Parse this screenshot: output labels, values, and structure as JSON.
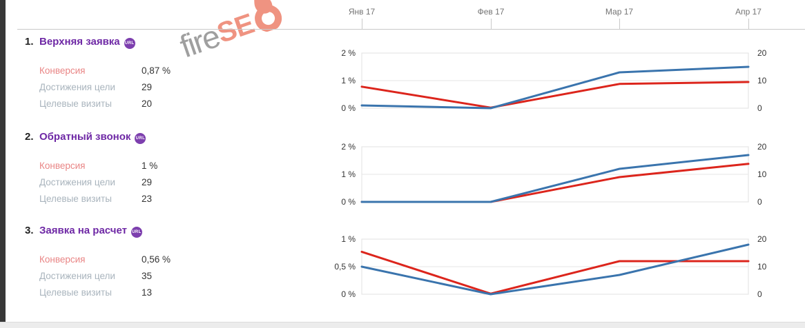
{
  "header": {
    "months": [
      "Янв 17",
      "Фев 17",
      "Мар 17",
      "Апр 17"
    ]
  },
  "logo": {
    "text_gray": "fire",
    "text_accent": "SE",
    "accent_color": "#ef8e7b",
    "gray_color": "#9a9a9a"
  },
  "labels": {
    "conversion": "Конверсия",
    "goal_reaches": "Достижения цели",
    "goal_visits": "Целевые визиты"
  },
  "goals": [
    {
      "index": "1.",
      "title": "Верхняя заявка",
      "badge": "URL",
      "conversion": "0,87 %",
      "reaches": "29",
      "visits": "20"
    },
    {
      "index": "2.",
      "title": "Обратный звонок",
      "badge": "URL",
      "conversion": "1 %",
      "reaches": "29",
      "visits": "23"
    },
    {
      "index": "3.",
      "title": "Заявка на расчет",
      "badge": "URL",
      "conversion": "0,56 %",
      "reaches": "35",
      "visits": "13"
    }
  ],
  "colors": {
    "conversion_line": "#dc251c",
    "reaches_line": "#3a74ad",
    "goal_title": "#6e28a5",
    "badge": "#7d3fae",
    "conversion_label": "#e98585",
    "muted_label": "#a9b4bd"
  },
  "chart_data": [
    {
      "type": "line",
      "title": "Верхняя заявка — динамика по месяцам",
      "x": [
        "Янв 17",
        "Фев 17",
        "Мар 17",
        "Апр 17"
      ],
      "series": [
        {
          "name": "Конверсия, %",
          "key": "conversion-line",
          "axis": "left",
          "color": "#dc251c",
          "values": [
            0.78,
            0.02,
            0.88,
            0.95
          ]
        },
        {
          "name": "Достижения цели",
          "key": "reaches-line",
          "axis": "right",
          "color": "#3a74ad",
          "values": [
            1,
            0,
            13,
            15
          ]
        }
      ],
      "left_axis": {
        "ticks": [
          "0 %",
          "1 %",
          "2 %"
        ],
        "max": 2
      },
      "right_axis": {
        "ticks": [
          "0",
          "10",
          "20"
        ],
        "max": 20
      },
      "grid": true,
      "legend": "none"
    },
    {
      "type": "line",
      "title": "Обратный звонок — динамика по месяцам",
      "x": [
        "Янв 17",
        "Фев 17",
        "Мар 17",
        "Апр 17"
      ],
      "series": [
        {
          "name": "Конверсия, %",
          "key": "conversion-line",
          "axis": "left",
          "color": "#dc251c",
          "values": [
            0,
            0,
            0.9,
            1.38
          ]
        },
        {
          "name": "Достижения цели",
          "key": "reaches-line",
          "axis": "right",
          "color": "#3a74ad",
          "values": [
            0,
            0,
            12,
            17
          ]
        }
      ],
      "left_axis": {
        "ticks": [
          "0 %",
          "1 %",
          "2 %"
        ],
        "max": 2
      },
      "right_axis": {
        "ticks": [
          "0",
          "10",
          "20"
        ],
        "max": 20
      },
      "grid": true,
      "legend": "none"
    },
    {
      "type": "line",
      "title": "Заявка на расчет — динамика по месяцам",
      "x": [
        "Янв 17",
        "Фев 17",
        "Мар 17",
        "Апр 17"
      ],
      "series": [
        {
          "name": "Конверсия, %",
          "key": "conversion-line",
          "axis": "left",
          "color": "#dc251c",
          "values": [
            0.77,
            0.01,
            0.6,
            0.6
          ]
        },
        {
          "name": "Достижения цели",
          "key": "reaches-line",
          "axis": "right",
          "color": "#3a74ad",
          "values": [
            10,
            0,
            7,
            18
          ]
        }
      ],
      "left_axis": {
        "ticks": [
          "0 %",
          "0,5 %",
          "1 %"
        ],
        "max": 1
      },
      "right_axis": {
        "ticks": [
          "0",
          "10",
          "20"
        ],
        "max": 20
      },
      "grid": true,
      "legend": "none"
    }
  ]
}
